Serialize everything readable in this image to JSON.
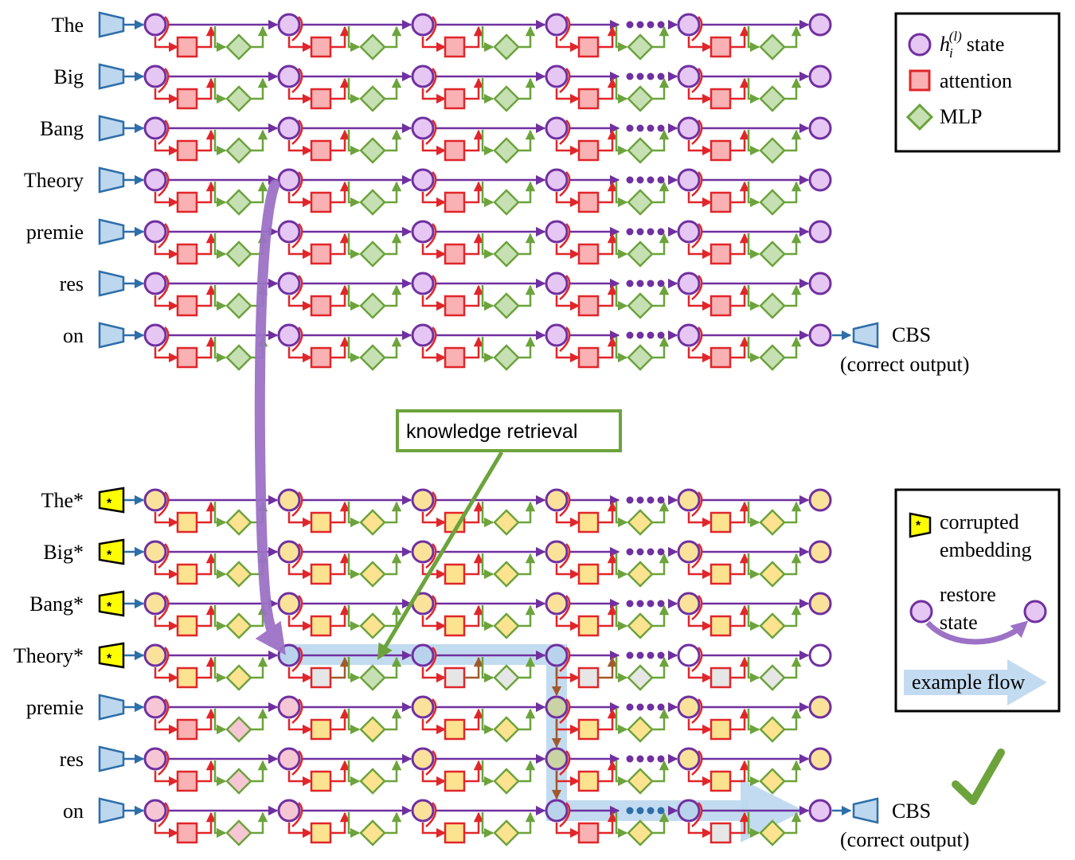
{
  "top_panel": {
    "tokens": [
      "The",
      "Big",
      "Bang",
      "Theory",
      "premie",
      "res",
      "on"
    ],
    "output": {
      "token": "CBS",
      "note": "(correct output)"
    }
  },
  "bottom_panel": {
    "tokens": [
      "The*",
      "Big*",
      "Bang*",
      "Theory*",
      "premie",
      "res",
      "on"
    ],
    "output": {
      "token": "CBS",
      "note": "(correct output)"
    },
    "check_icon": "checkmark-icon"
  },
  "legend_top": {
    "state_symbol": "h",
    "state_sub": "i",
    "state_sup": "(l)",
    "state_label": "state",
    "attention_label": "attention",
    "mlp_label": "MLP"
  },
  "legend_bottom": {
    "corrupted_line1": "corrupted",
    "corrupted_line2": "embedding",
    "restore_line1": "restore",
    "restore_line2": "state",
    "flow_label": "example flow"
  },
  "callout": {
    "label": "knowledge retrieval"
  },
  "ellipsis": "•••",
  "colors": {
    "state_purple": "#7030a0",
    "state_fill_clean": "#e6c6f2",
    "state_fill_corrupt": "#fbe29b",
    "state_fill_pink": "#f7c6d4",
    "state_fill_restored": "#b9d3ec",
    "state_fill_mix": "#c9d3a4",
    "attention_red": "#e0262a",
    "attention_fill": "#f9b1b3",
    "mlp_green": "#6ca33c",
    "mlp_fill": "#c6e0b4",
    "embed_blue": "#2e6eaa",
    "embed_fill": "#bdd7ee",
    "corrupt_yellow": "#ffff00",
    "restore_arrow": "#9c72c6",
    "flow_blue": "#bdd7ee",
    "brown": "#a05a2c",
    "check_green": "#6ca33c"
  }
}
